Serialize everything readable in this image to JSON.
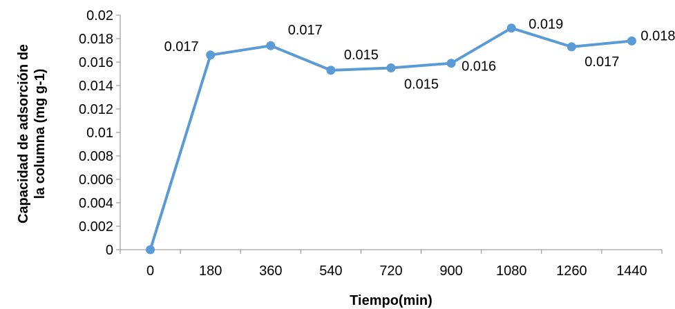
{
  "chart_data": {
    "type": "line",
    "title": "",
    "xlabel": "Tiempo(min)",
    "ylabel_lines": [
      "Capacidad de adsorción de",
      "la  columna (mg g-1)"
    ],
    "categories": [
      "0",
      "180",
      "360",
      "540",
      "720",
      "900",
      "1080",
      "1260",
      "1440"
    ],
    "y_ticks": [
      "0",
      "0.002",
      "0.004",
      "0.006",
      "0.008",
      "0.01",
      "0.012",
      "0.014",
      "0.016",
      "0.018",
      "0.02"
    ],
    "ylim": [
      0,
      0.02
    ],
    "grid": false,
    "legend": "none",
    "series": [
      {
        "values": [
          0,
          0.0166,
          0.0174,
          0.0153,
          0.0155,
          0.0159,
          0.0189,
          0.0173,
          0.0178
        ],
        "labels": [
          "",
          "0.017",
          "0.017",
          "0.015",
          "0.015",
          "0.016",
          "0.019",
          "0.017",
          "0.018"
        ],
        "color": "#5b9bd5"
      }
    ]
  }
}
